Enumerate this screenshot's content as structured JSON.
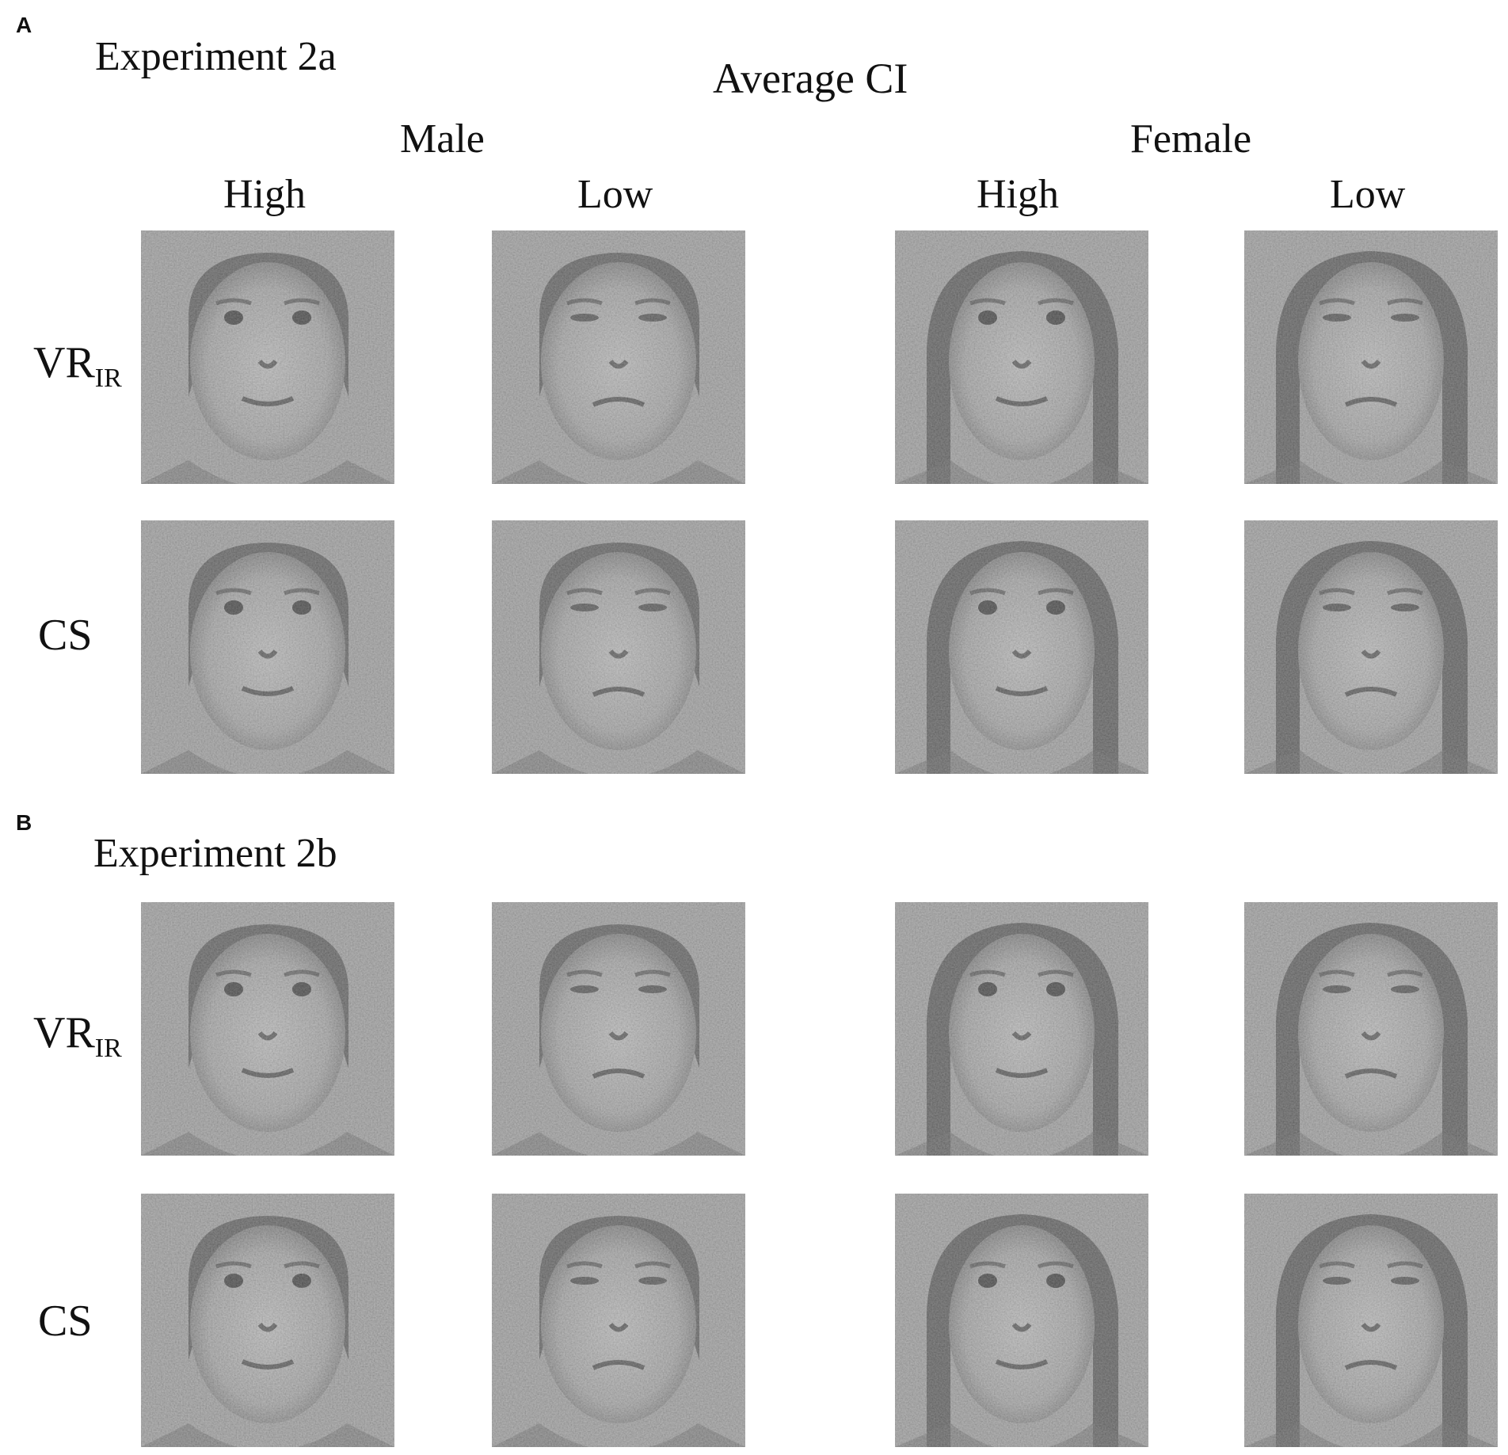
{
  "panels": [
    {
      "letter": "A",
      "experiment": "Experiment 2a",
      "title": "Average CI",
      "groups": [
        "Male",
        "Female"
      ],
      "columns": [
        "High",
        "Low",
        "High",
        "Low"
      ],
      "rows": [
        {
          "label_main": "VR",
          "label_sub": "IR"
        },
        {
          "label_main": "CS",
          "label_sub": ""
        }
      ]
    },
    {
      "letter": "B",
      "experiment": "Experiment 2b",
      "rows": [
        {
          "label_main": "VR",
          "label_sub": "IR"
        },
        {
          "label_main": "CS",
          "label_sub": ""
        }
      ]
    }
  ],
  "colors": {
    "background": "#ffffff",
    "text": "#111111",
    "image_gray_base": "#9a9a9a"
  }
}
